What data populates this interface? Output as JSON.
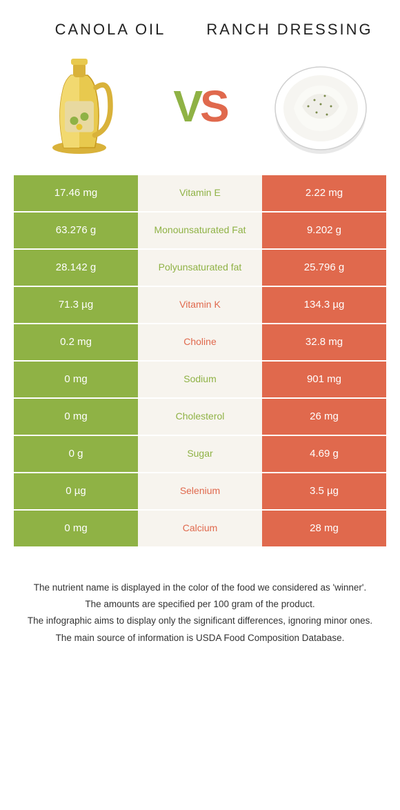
{
  "colors": {
    "left_bg": "#8fb245",
    "right_bg": "#e0694d",
    "mid_bg": "#f7f4ee",
    "left_text_winner": "#8fb245",
    "right_text_winner": "#e0694d"
  },
  "header": {
    "left_title": "CANOLA OIL",
    "right_title": "RANCH DRESSING",
    "vs_v": "V",
    "vs_s": "S"
  },
  "rows": [
    {
      "label": "Vitamin E",
      "left": "17.46 mg",
      "right": "2.22 mg",
      "winner": "left"
    },
    {
      "label": "Monounsaturated Fat",
      "left": "63.276 g",
      "right": "9.202 g",
      "winner": "left"
    },
    {
      "label": "Polyunsaturated fat",
      "left": "28.142 g",
      "right": "25.796 g",
      "winner": "left"
    },
    {
      "label": "Vitamin K",
      "left": "71.3 µg",
      "right": "134.3 µg",
      "winner": "right"
    },
    {
      "label": "Choline",
      "left": "0.2 mg",
      "right": "32.8 mg",
      "winner": "right"
    },
    {
      "label": "Sodium",
      "left": "0 mg",
      "right": "901 mg",
      "winner": "left"
    },
    {
      "label": "Cholesterol",
      "left": "0 mg",
      "right": "26 mg",
      "winner": "left"
    },
    {
      "label": "Sugar",
      "left": "0 g",
      "right": "4.69 g",
      "winner": "left"
    },
    {
      "label": "Selenium",
      "left": "0 µg",
      "right": "3.5 µg",
      "winner": "right"
    },
    {
      "label": "Calcium",
      "left": "0 mg",
      "right": "28 mg",
      "winner": "right"
    }
  ],
  "footer": {
    "line1": "The nutrient name is displayed in the color of the food we considered as 'winner'.",
    "line2": "The amounts are specified per 100 gram of the product.",
    "line3": "The infographic aims to display only the significant differences, ignoring minor ones.",
    "line4": "The main source of information is USDA Food Composition Database."
  }
}
